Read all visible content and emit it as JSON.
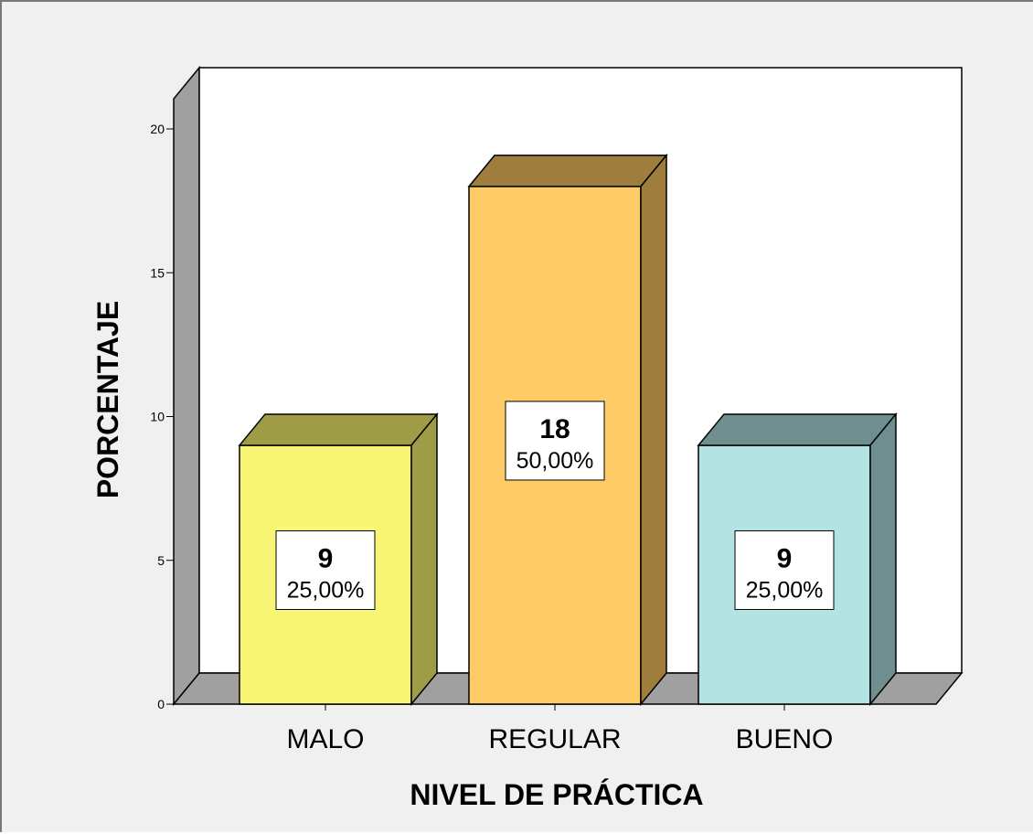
{
  "chart_data": {
    "type": "bar",
    "categories": [
      "MALO",
      "REGULAR",
      "BUENO"
    ],
    "values": [
      9,
      18,
      9
    ],
    "percent_labels": [
      "25,00%",
      "50,00%",
      "25,00%"
    ],
    "colors": {
      "front": [
        "#f8f674",
        "#fdcc66",
        "#b3e3e3"
      ],
      "top": [
        "#9e9c47",
        "#9f7e3d",
        "#6e8e8f"
      ],
      "side": [
        "#9e9c47",
        "#9f7e3d",
        "#6e8e8f"
      ],
      "wall": "#ffffff",
      "wall_left": "#a0a0a0",
      "floor": "#a0a0a0",
      "background": "#f0f0f0"
    },
    "xlabel": "NIVEL DE PRÁCTICA",
    "ylabel": "PORCENTAJE",
    "ylim": [
      0,
      20
    ],
    "yticks": [
      "0",
      "5",
      "10",
      "15",
      "20"
    ],
    "grid": false,
    "three_d": true
  }
}
